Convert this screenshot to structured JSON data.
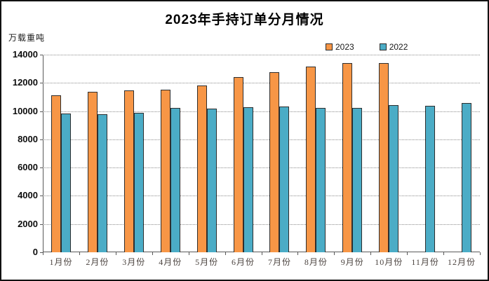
{
  "chart_data": {
    "type": "bar",
    "title": "2023年手持订单分月情况",
    "ylabel": "万载重吨",
    "xlabel": "",
    "categories": [
      "1月份",
      "2月份",
      "3月份",
      "4月份",
      "5月份",
      "6月份",
      "7月份",
      "8月份",
      "9月份",
      "10月份",
      "11月份",
      "12月份"
    ],
    "series": [
      {
        "name": "2023",
        "color": "#F79646",
        "values": [
          11100,
          11350,
          11450,
          11500,
          11800,
          12400,
          12750,
          13150,
          13400,
          13400,
          null,
          null
        ]
      },
      {
        "name": "2022",
        "color": "#4BACC6",
        "values": [
          9850,
          9800,
          9900,
          10250,
          10200,
          10300,
          10350,
          10250,
          10250,
          10450,
          10400,
          10550
        ]
      }
    ],
    "ylim": [
      0,
      14000
    ],
    "ytick_step": 2000,
    "yticks": [
      "0",
      "2000",
      "4000",
      "6000",
      "8000",
      "10000",
      "12000",
      "14000"
    ],
    "grid": "horizontal-dotted",
    "legend_position": "top-right",
    "bar_border_color": "#2e2e2e",
    "axis_color": "#595959",
    "gridline_color": "#8c8c8c"
  }
}
